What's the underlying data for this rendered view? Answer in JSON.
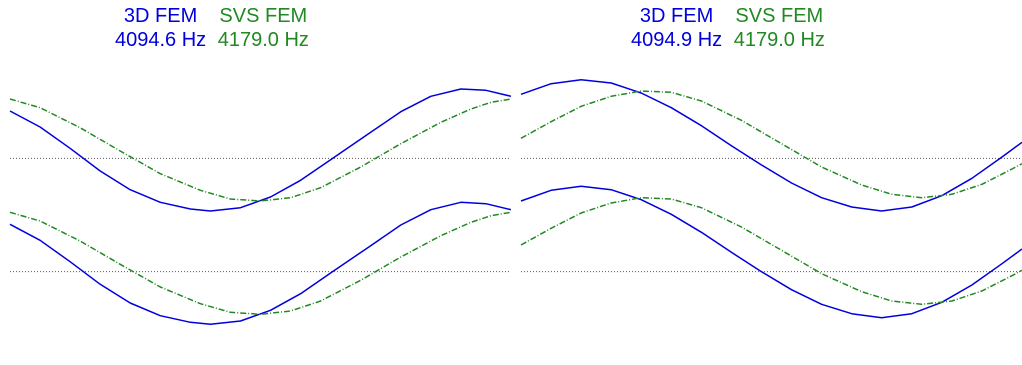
{
  "colors": {
    "fem3d": "#0000dd",
    "svs": "#228822",
    "reference": "#555555"
  },
  "chart_data": [
    {
      "type": "line",
      "legend": [
        {
          "name": "3D FEM",
          "frequency": "4094.6 Hz",
          "color": "#0000dd",
          "style": "solid"
        },
        {
          "name": "SVS FEM",
          "frequency": "4179.0 Hz",
          "color": "#228822",
          "style": "dashed"
        }
      ],
      "grid": false,
      "reference_lines": [
        0,
        -1.7
      ],
      "ylim": [
        -3.1,
        1.4
      ],
      "xlim": [
        0,
        1
      ],
      "series": [
        {
          "name": "3D FEM",
          "style": "solid",
          "color": "#0000dd",
          "points": [
            [
              0.0,
              0.71
            ],
            [
              0.06,
              0.47
            ],
            [
              0.12,
              0.15
            ],
            [
              0.18,
              -0.19
            ],
            [
              0.24,
              -0.47
            ],
            [
              0.3,
              -0.66
            ],
            [
              0.36,
              -0.76
            ],
            [
              0.4,
              -0.79
            ],
            [
              0.46,
              -0.74
            ],
            [
              0.52,
              -0.58
            ],
            [
              0.58,
              -0.33
            ],
            [
              0.64,
              -0.02
            ],
            [
              0.72,
              0.39
            ],
            [
              0.78,
              0.7
            ],
            [
              0.84,
              0.93
            ],
            [
              0.9,
              1.04
            ],
            [
              0.95,
              1.02
            ],
            [
              1.0,
              0.93
            ]
          ]
        },
        {
          "name": "SVS FEM",
          "style": "dashed",
          "color": "#228822",
          "points": [
            [
              0.0,
              0.89
            ],
            [
              0.06,
              0.76
            ],
            [
              0.14,
              0.46
            ],
            [
              0.22,
              0.11
            ],
            [
              0.3,
              -0.23
            ],
            [
              0.38,
              -0.48
            ],
            [
              0.44,
              -0.61
            ],
            [
              0.5,
              -0.64
            ],
            [
              0.56,
              -0.59
            ],
            [
              0.62,
              -0.44
            ],
            [
              0.7,
              -0.13
            ],
            [
              0.78,
              0.22
            ],
            [
              0.86,
              0.54
            ],
            [
              0.92,
              0.74
            ],
            [
              0.96,
              0.84
            ],
            [
              1.0,
              0.89
            ]
          ]
        },
        {
          "name": "3D FEM",
          "style": "solid",
          "color": "#0000dd",
          "points": [
            [
              0.0,
              -0.99
            ],
            [
              0.06,
              -1.23
            ],
            [
              0.12,
              -1.55
            ],
            [
              0.18,
              -1.89
            ],
            [
              0.24,
              -2.17
            ],
            [
              0.3,
              -2.36
            ],
            [
              0.36,
              -2.46
            ],
            [
              0.4,
              -2.49
            ],
            [
              0.46,
              -2.44
            ],
            [
              0.52,
              -2.28
            ],
            [
              0.58,
              -2.03
            ],
            [
              0.64,
              -1.72
            ],
            [
              0.72,
              -1.31
            ],
            [
              0.78,
              -1.0
            ],
            [
              0.84,
              -0.77
            ],
            [
              0.9,
              -0.66
            ],
            [
              0.95,
              -0.68
            ],
            [
              1.0,
              -0.77
            ]
          ]
        },
        {
          "name": "SVS FEM",
          "style": "dashed",
          "color": "#228822",
          "points": [
            [
              0.0,
              -0.81
            ],
            [
              0.06,
              -0.94
            ],
            [
              0.14,
              -1.24
            ],
            [
              0.22,
              -1.59
            ],
            [
              0.3,
              -1.93
            ],
            [
              0.38,
              -2.18
            ],
            [
              0.44,
              -2.31
            ],
            [
              0.5,
              -2.34
            ],
            [
              0.56,
              -2.29
            ],
            [
              0.62,
              -2.14
            ],
            [
              0.7,
              -1.83
            ],
            [
              0.78,
              -1.48
            ],
            [
              0.86,
              -1.16
            ],
            [
              0.92,
              -0.96
            ],
            [
              0.96,
              -0.86
            ],
            [
              1.0,
              -0.81
            ]
          ]
        }
      ]
    },
    {
      "type": "line",
      "legend": [
        {
          "name": "3D FEM",
          "frequency": "4094.9 Hz",
          "color": "#0000dd",
          "style": "solid"
        },
        {
          "name": "SVS FEM",
          "frequency": "4179.0 Hz",
          "color": "#228822",
          "style": "dashed"
        }
      ],
      "grid": false,
      "reference_lines": [
        0,
        -1.7
      ],
      "ylim": [
        -3.1,
        1.4
      ],
      "xlim": [
        0,
        1
      ],
      "series": [
        {
          "name": "3D FEM",
          "style": "solid",
          "color": "#0000dd",
          "points": [
            [
              0.0,
              0.96
            ],
            [
              0.06,
              1.12
            ],
            [
              0.12,
              1.18
            ],
            [
              0.18,
              1.13
            ],
            [
              0.24,
              0.98
            ],
            [
              0.3,
              0.76
            ],
            [
              0.36,
              0.49
            ],
            [
              0.42,
              0.19
            ],
            [
              0.48,
              -0.1
            ],
            [
              0.54,
              -0.37
            ],
            [
              0.6,
              -0.59
            ],
            [
              0.66,
              -0.73
            ],
            [
              0.72,
              -0.79
            ],
            [
              0.78,
              -0.73
            ],
            [
              0.84,
              -0.56
            ],
            [
              0.9,
              -0.3
            ],
            [
              0.96,
              0.02
            ],
            [
              1.0,
              0.24
            ]
          ]
        },
        {
          "name": "SVS FEM",
          "style": "dashed",
          "color": "#228822",
          "points": [
            [
              0.0,
              0.3
            ],
            [
              0.06,
              0.55
            ],
            [
              0.12,
              0.78
            ],
            [
              0.18,
              0.93
            ],
            [
              0.24,
              1.01
            ],
            [
              0.3,
              0.99
            ],
            [
              0.36,
              0.86
            ],
            [
              0.44,
              0.57
            ],
            [
              0.52,
              0.22
            ],
            [
              0.6,
              -0.13
            ],
            [
              0.68,
              -0.4
            ],
            [
              0.74,
              -0.54
            ],
            [
              0.8,
              -0.59
            ],
            [
              0.86,
              -0.54
            ],
            [
              0.92,
              -0.39
            ],
            [
              0.98,
              -0.16
            ],
            [
              1.0,
              -0.08
            ]
          ]
        },
        {
          "name": "3D FEM",
          "style": "solid",
          "color": "#0000dd",
          "points": [
            [
              0.0,
              -0.64
            ],
            [
              0.06,
              -0.48
            ],
            [
              0.12,
              -0.42
            ],
            [
              0.18,
              -0.47
            ],
            [
              0.24,
              -0.62
            ],
            [
              0.3,
              -0.84
            ],
            [
              0.36,
              -1.11
            ],
            [
              0.42,
              -1.41
            ],
            [
              0.48,
              -1.7
            ],
            [
              0.54,
              -1.97
            ],
            [
              0.6,
              -2.19
            ],
            [
              0.66,
              -2.33
            ],
            [
              0.72,
              -2.39
            ],
            [
              0.78,
              -2.33
            ],
            [
              0.84,
              -2.16
            ],
            [
              0.9,
              -1.9
            ],
            [
              0.96,
              -1.58
            ],
            [
              1.0,
              -1.36
            ]
          ]
        },
        {
          "name": "SVS FEM",
          "style": "dashed",
          "color": "#228822",
          "points": [
            [
              0.0,
              -1.3
            ],
            [
              0.06,
              -1.05
            ],
            [
              0.12,
              -0.82
            ],
            [
              0.18,
              -0.67
            ],
            [
              0.24,
              -0.59
            ],
            [
              0.3,
              -0.61
            ],
            [
              0.36,
              -0.74
            ],
            [
              0.44,
              -1.03
            ],
            [
              0.52,
              -1.38
            ],
            [
              0.6,
              -1.73
            ],
            [
              0.68,
              -2.0
            ],
            [
              0.74,
              -2.14
            ],
            [
              0.8,
              -2.19
            ],
            [
              0.86,
              -2.14
            ],
            [
              0.92,
              -1.99
            ],
            [
              0.98,
              -1.76
            ],
            [
              1.0,
              -1.68
            ]
          ]
        }
      ]
    }
  ]
}
